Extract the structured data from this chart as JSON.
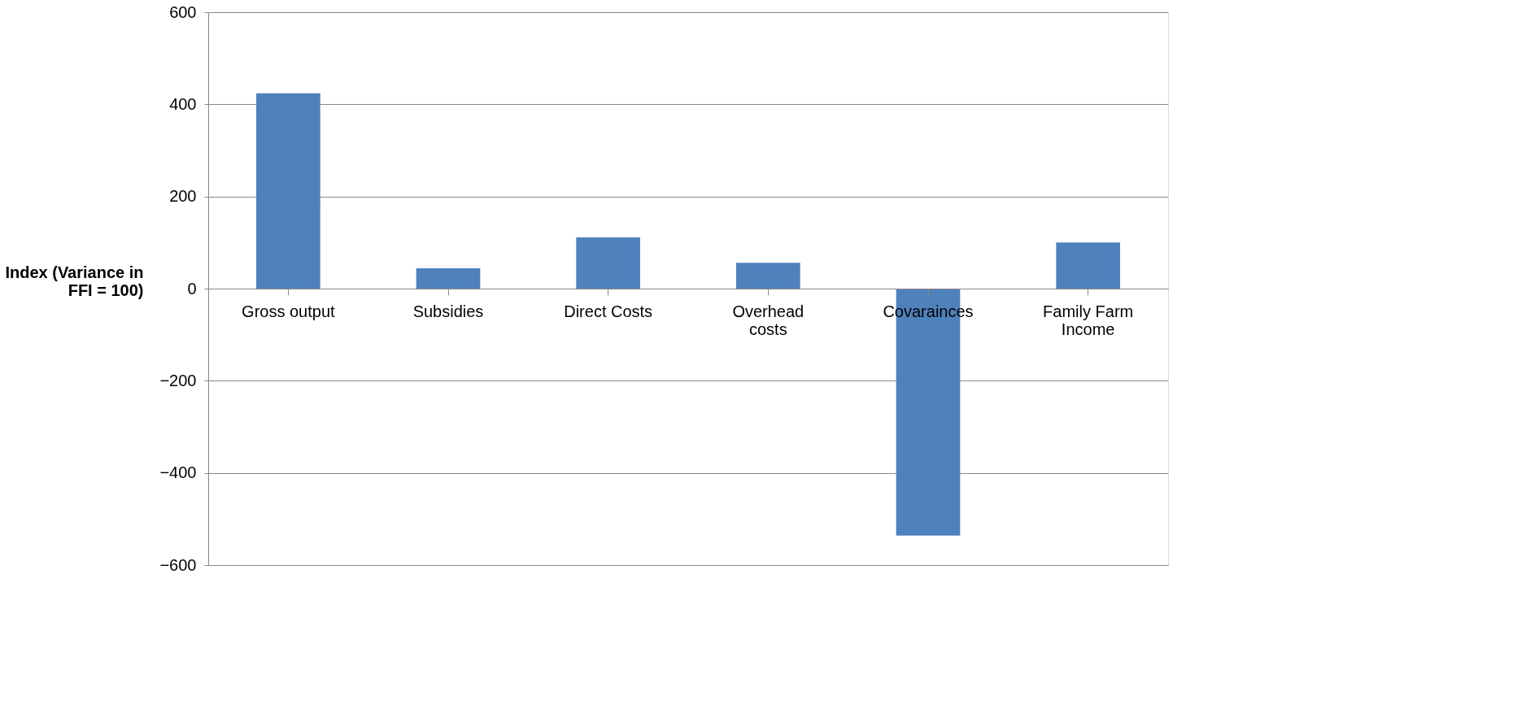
{
  "chart_data": {
    "type": "bar",
    "categories": [
      "Gross output",
      "Subsidies",
      "Direct Costs",
      "Overhead costs",
      "Covarainces",
      "Family Farm Income"
    ],
    "values": [
      424,
      44,
      111,
      56,
      -536,
      100
    ],
    "color": "#4f81bd",
    "ylabel": "Index    (Variance in FFI = 100)",
    "ylim": [
      -600,
      600
    ],
    "yticks": [
      -600,
      -400,
      -200,
      0,
      200,
      400,
      600
    ],
    "grid": "y"
  }
}
